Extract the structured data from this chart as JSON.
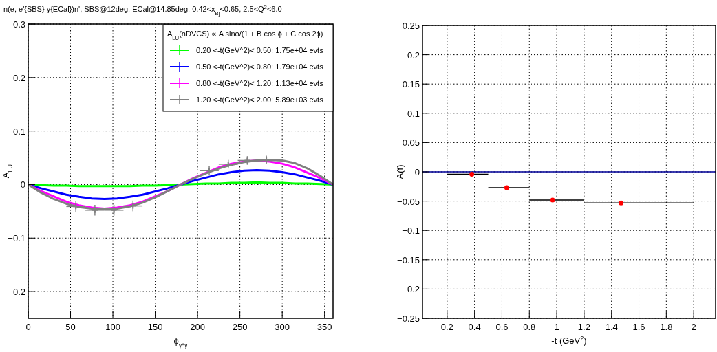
{
  "chart_data": [
    {
      "type": "line",
      "title": "n(e, e'{SBS} γ{ECal})n', SBS@12deg, ECal@14.85deg, 0.42<x$_{Bj}$<0.65, 2.5<Q$^{2}$<6.0",
      "xlabel": "ϕ$_{γ*γ}$",
      "ylabel": "A$_{LU}$",
      "legend_title": "A$_{LU}$(nDVCS) ∝ A sinϕ/(1 + B cos ϕ + C cos 2ϕ)",
      "legend": "top right",
      "grid": true,
      "xlim": [
        0,
        360
      ],
      "xticks": [
        0,
        50,
        100,
        150,
        200,
        250,
        300,
        350
      ],
      "ylim": [
        -0.25,
        0.3
      ],
      "yticks": [
        {
          "value": -0.2,
          "label": "−0.2"
        },
        {
          "value": -0.1,
          "label": "−0.1"
        },
        0,
        0.1,
        0.2,
        0.3
      ],
      "x": [
        0,
        15,
        30,
        45,
        60,
        75,
        90,
        105,
        120,
        135,
        150,
        165,
        180,
        195,
        210,
        225,
        240,
        255,
        270,
        285,
        300,
        315,
        330,
        345,
        360
      ],
      "series": [
        {
          "name": "0.20 <-t(GeV^2)< 0.50: 1.75e+04 evts",
          "color": "#00ff00",
          "values": [
            0,
            -0.001,
            -0.002,
            -0.002,
            -0.003,
            -0.003,
            -0.003,
            -0.003,
            -0.003,
            -0.002,
            -0.002,
            -0.001,
            0,
            0.001,
            0.002,
            0.002,
            0.003,
            0.003,
            0.004,
            0.003,
            0.003,
            0.002,
            0.002,
            0.001,
            0
          ]
        },
        {
          "name": "0.50 <-t(GeV^2)< 0.80: 1.79e+04 evts",
          "color": "#0000ff",
          "values": [
            0,
            -0.007,
            -0.013,
            -0.019,
            -0.023,
            -0.026,
            -0.027,
            -0.026,
            -0.023,
            -0.019,
            -0.013,
            -0.007,
            0,
            0.007,
            0.013,
            0.019,
            0.023,
            0.026,
            0.027,
            0.026,
            0.023,
            0.019,
            0.013,
            0.007,
            0
          ]
        },
        {
          "name": "0.80 <-t(GeV^2)< 1.20: 1.13e+04 evts",
          "color": "#ff00ff",
          "values": [
            0,
            -0.012,
            -0.022,
            -0.032,
            -0.039,
            -0.043,
            -0.045,
            -0.043,
            -0.039,
            -0.032,
            -0.022,
            -0.012,
            0,
            0.012,
            0.022,
            0.032,
            0.039,
            0.043,
            0.045,
            0.043,
            0.039,
            0.032,
            0.022,
            0.012,
            0
          ]
        },
        {
          "name": "1.20 <-t(GeV^2)< 2.00: 5.89e+03 evts",
          "color": "#808080",
          "values": [
            0,
            -0.015,
            -0.027,
            -0.036,
            -0.042,
            -0.045,
            -0.046,
            -0.045,
            -0.041,
            -0.034,
            -0.024,
            -0.012,
            0,
            0.011,
            0.021,
            0.03,
            0.037,
            0.042,
            0.045,
            0.046,
            0.045,
            0.04,
            0.03,
            0.016,
            0
          ]
        },
        {
          "type": "scatter",
          "marker": "cross",
          "color": "#808080",
          "x": [
            56.25,
            78.75,
            101.25,
            123.75,
            213.75,
            236.25,
            258.75,
            281.25
          ],
          "values": [
            -0.041,
            -0.048,
            -0.048,
            -0.04,
            0.026,
            0.038,
            0.045,
            0.046
          ],
          "xerrors": [
            11.25,
            11.25,
            11.25,
            11.25,
            11.25,
            11.25,
            11.25,
            11.25
          ],
          "errors": [
            0.01,
            0.01,
            0.01,
            0.01,
            0.008,
            0.008,
            0.008,
            0.008
          ]
        }
      ]
    },
    {
      "type": "scatter",
      "xlabel": "-t (GeV$^{2}$)",
      "ylabel": "A(t)",
      "grid": true,
      "marker": "circle",
      "xlim": [
        0.02,
        2.16
      ],
      "xticks": [
        0.2,
        0.4,
        0.6,
        0.8,
        1,
        1.2,
        1.4,
        1.6,
        1.8,
        2
      ],
      "ylim": [
        -0.25,
        0.25
      ],
      "yticks": [
        {
          "value": -0.25,
          "label": "−0.25"
        },
        {
          "value": -0.2,
          "label": "−0.2"
        },
        {
          "value": -0.15,
          "label": "−0.15"
        },
        {
          "value": -0.1,
          "label": "−0.1"
        },
        {
          "value": -0.05,
          "label": "−0.05"
        },
        0,
        0.05,
        0.1,
        0.15,
        0.2,
        0.25
      ],
      "ref_lines": [
        {
          "axis": "y",
          "value": 0,
          "color": "#000099"
        }
      ],
      "x": [
        0.38,
        0.635,
        0.97,
        1.47
      ],
      "series": [
        {
          "color": "#ff0000",
          "values": [
            -0.004,
            -0.027,
            -0.048,
            -0.053
          ],
          "xerrors": [
            [
              0.2,
              0.5
            ],
            [
              0.5,
              0.8
            ],
            [
              0.8,
              1.2
            ],
            [
              1.2,
              2.0
            ]
          ]
        }
      ]
    }
  ]
}
